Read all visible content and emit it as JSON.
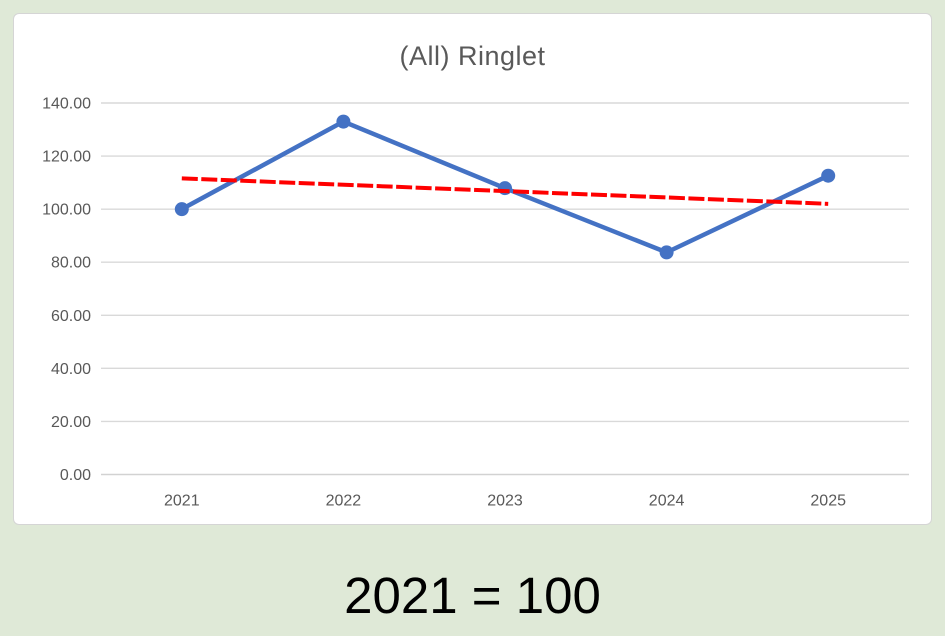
{
  "page": {
    "background_color": "#dfe9d7",
    "footnote": "2021 = 100"
  },
  "chart_panel": {
    "background_color": "#ffffff",
    "border_color": "#d5d5d5"
  },
  "chart_data": {
    "type": "line",
    "title": "(All) Ringlet",
    "title_color": "#595959",
    "categories": [
      "2021",
      "2022",
      "2023",
      "2024",
      "2025"
    ],
    "series": [
      {
        "color": "#4472c4",
        "marker": "circle",
        "values": [
          100.0,
          133.0,
          107.9,
          83.7,
          112.6
        ]
      }
    ],
    "trendline": {
      "type": "linear",
      "color": "#ff0000",
      "dashed": true,
      "start_value": 111.6,
      "end_value": 102.0
    },
    "xlabel": "",
    "ylabel": "",
    "ylim": [
      0,
      140
    ],
    "ytick_step": 20,
    "ytick_labels": [
      "0.00",
      "20.00",
      "40.00",
      "60.00",
      "80.00",
      "100.00",
      "120.00",
      "140.00"
    ],
    "grid": true,
    "legend": "none",
    "grid_color": "#d9d9d9",
    "axis_color": "#d2d2d2",
    "label_color": "#595959"
  }
}
